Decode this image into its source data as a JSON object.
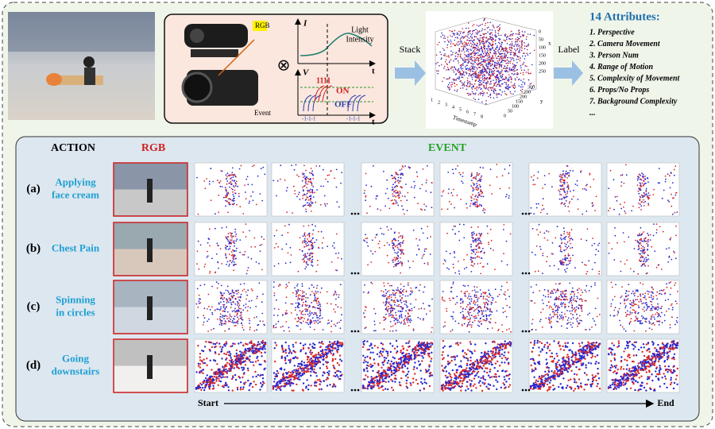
{
  "top": {
    "camera": {
      "rgb_label": "RGB",
      "event_label": "Event"
    },
    "signal": {
      "intensity_axis": "I",
      "time_axis_1": "t",
      "intensity_label": [
        "Light",
        "Intensity"
      ],
      "voltage_axis": "V",
      "time_axis_2": "t",
      "on_counts": "1111",
      "on": "ON",
      "off": "OFF",
      "off_counts_1": "-1-1-1",
      "off_counts_2": "-1-1-1",
      "time_axis_3": "t"
    },
    "stack": "Stack",
    "plot": {
      "x_axis": "x",
      "x_ticks": [
        "0",
        "50",
        "100",
        "150",
        "200",
        "250"
      ],
      "y_axis": "y",
      "y_ticks": [
        "300",
        "250",
        "200",
        "150",
        "100",
        "50",
        "0"
      ],
      "t_axis": "Timestamp",
      "t_ticks": [
        "1",
        "2",
        "3",
        "4",
        "5",
        "6",
        "7",
        "8"
      ]
    },
    "label": "Label",
    "attributes": {
      "title": "14 Attributes:",
      "items": [
        "1. Perspective",
        "2. Camera Movement",
        "3. Person Num",
        "4. Range of Motion",
        "5. Complexity of Movement",
        "6. Props/No Props",
        "7. Background Complexity",
        "..."
      ]
    }
  },
  "bottom": {
    "headers": {
      "action": "ACTION",
      "rgb": "RGB",
      "event": "EVENT"
    },
    "rows": [
      {
        "id": "(a)",
        "action": [
          "Applying",
          "face cream"
        ]
      },
      {
        "id": "(b)",
        "action": [
          "Chest Pain"
        ]
      },
      {
        "id": "(c)",
        "action": [
          "Spinning",
          "in circles"
        ]
      },
      {
        "id": "(d)",
        "action": [
          "Going",
          "downstairs"
        ]
      }
    ],
    "timeline": {
      "start": "Start",
      "end": "End"
    }
  }
}
